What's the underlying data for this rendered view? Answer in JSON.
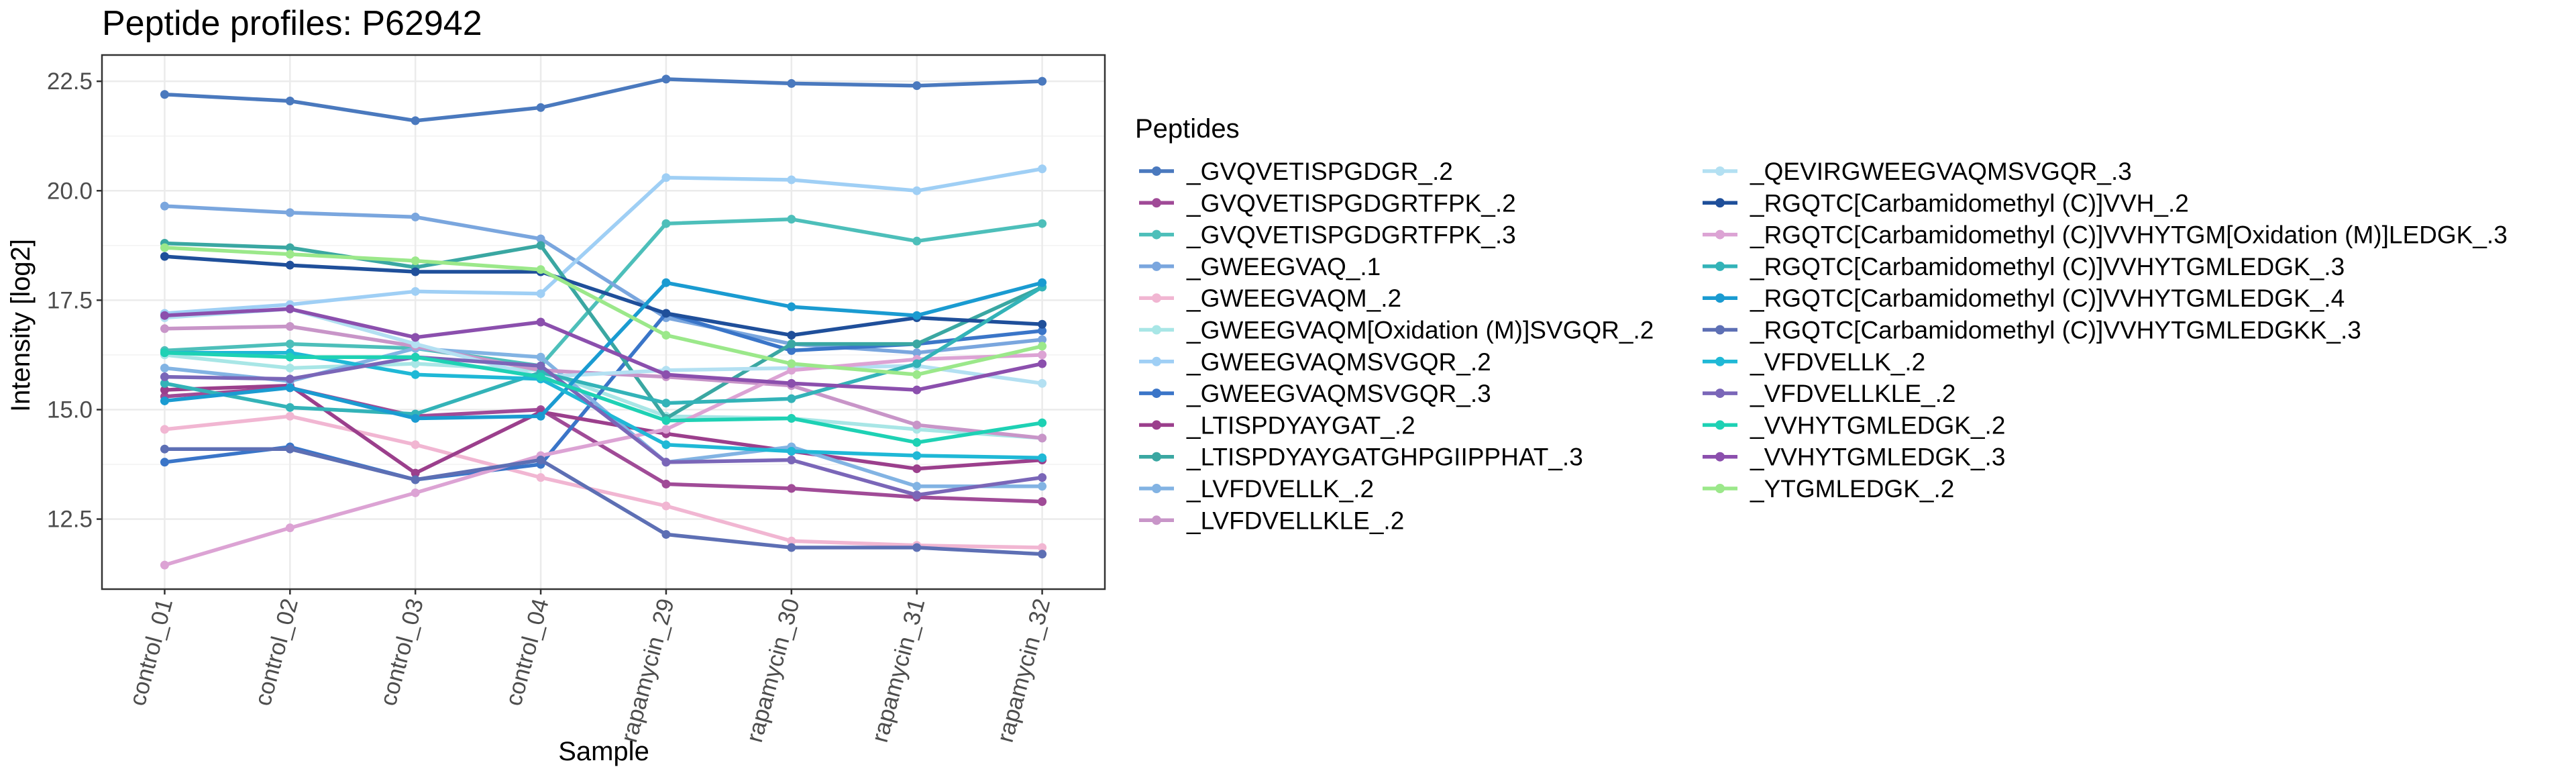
{
  "chart_data": {
    "type": "line",
    "title": "Peptide profiles: P62942",
    "xlabel": "Sample",
    "ylabel": "Intensity [log2]",
    "ylim": [
      10.9,
      23.1
    ],
    "y_ticks": [
      12.5,
      15.0,
      17.5,
      20.0,
      22.5
    ],
    "y_tick_labels": [
      "12.5",
      "15.0",
      "17.5",
      "20.0",
      "22.5"
    ],
    "grid": true,
    "legend_title": "Peptides",
    "legend_position": "right",
    "categories": [
      "control_01",
      "control_02",
      "control_03",
      "control_04",
      "rapamycin_29",
      "rapamycin_30",
      "rapamycin_31",
      "rapamycin_32"
    ],
    "series": [
      {
        "name": "_GVQVETISPGDGR_.2",
        "color": "#4a79be",
        "values": [
          22.2,
          22.05,
          21.6,
          21.9,
          22.55,
          22.45,
          22.4,
          22.5
        ]
      },
      {
        "name": "_GVQVETISPGDGRTFPK_.2",
        "color": "#a04b97",
        "values": [
          15.3,
          15.5,
          14.85,
          15.0,
          13.3,
          13.2,
          13.0,
          12.9
        ]
      },
      {
        "name": "_GVQVETISPGDGRTFPK_.3",
        "color": "#4dbfba",
        "values": [
          16.35,
          16.5,
          16.4,
          16.0,
          19.25,
          19.35,
          18.85,
          19.25
        ]
      },
      {
        "name": "_GWEEGVAQ_.1",
        "color": "#7aa6de",
        "values": [
          19.65,
          19.5,
          19.4,
          18.9,
          17.1,
          16.5,
          16.3,
          16.6
        ]
      },
      {
        "name": "_GWEEGVAQM_.2",
        "color": "#f1b6d2",
        "values": [
          14.55,
          14.85,
          14.2,
          13.45,
          12.8,
          12.0,
          11.9,
          11.85
        ]
      },
      {
        "name": "_GWEEGVAQM[Oxidation (M)]SVGQR_.2",
        "color": "#a8e6e6",
        "values": [
          16.25,
          15.95,
          16.05,
          15.9,
          14.85,
          14.8,
          14.55,
          14.35
        ]
      },
      {
        "name": "_GWEEGVAQMSVGQR_.2",
        "color": "#9fcff5",
        "values": [
          17.2,
          17.4,
          17.7,
          17.65,
          20.3,
          20.25,
          20.0,
          20.5
        ]
      },
      {
        "name": "_GWEEGVAQMSVGQR_.3",
        "color": "#3a75c8",
        "values": [
          13.8,
          14.15,
          13.4,
          13.75,
          17.2,
          16.35,
          16.5,
          16.8
        ]
      },
      {
        "name": "_LTISPDYAYGAT_.2",
        "color": "#9b3f8c",
        "values": [
          15.45,
          15.55,
          13.55,
          14.95,
          14.45,
          14.05,
          13.65,
          13.85
        ]
      },
      {
        "name": "_LTISPDYAYGATGHPGIIPPHAT_.3",
        "color": "#3aa7a2",
        "values": [
          18.8,
          18.7,
          18.25,
          18.75,
          14.8,
          16.5,
          16.5,
          17.8
        ]
      },
      {
        "name": "_LVFDVELLK_.2",
        "color": "#82b3e3",
        "values": [
          15.95,
          15.65,
          16.4,
          16.2,
          13.8,
          14.15,
          13.25,
          13.25
        ]
      },
      {
        "name": "_LVFDVELLKLE_.2",
        "color": "#c895c8",
        "values": [
          16.85,
          16.9,
          16.45,
          15.9,
          15.75,
          15.55,
          14.65,
          14.35
        ]
      },
      {
        "name": "_QEVIRGWEEGVAQMSVGQR_.3",
        "color": "#b3e0f2",
        "values": [
          17.1,
          17.3,
          16.5,
          15.75,
          15.9,
          15.95,
          16.0,
          15.6
        ]
      },
      {
        "name": "_RGQTC[Carbamidomethyl (C)]VVH_.2",
        "color": "#1f4f9a",
        "values": [
          18.5,
          18.3,
          18.15,
          18.15,
          17.2,
          16.7,
          17.1,
          16.95
        ]
      },
      {
        "name": "_RGQTC[Carbamidomethyl (C)]VVHYTGM[Oxidation (M)]LEDGK_.3",
        "color": "#dca3d4",
        "values": [
          11.45,
          12.3,
          13.1,
          13.95,
          14.55,
          15.9,
          16.15,
          16.25
        ]
      },
      {
        "name": "_RGQTC[Carbamidomethyl (C)]VVHYTGMLEDGK_.3",
        "color": "#33b3b8",
        "values": [
          15.6,
          15.05,
          14.9,
          15.85,
          15.15,
          15.25,
          16.05,
          17.8
        ]
      },
      {
        "name": "_RGQTC[Carbamidomethyl (C)]VVHYTGMLEDGK_.4",
        "color": "#1a9bd1",
        "values": [
          15.2,
          15.5,
          14.8,
          14.85,
          17.9,
          17.35,
          17.15,
          17.9
        ]
      },
      {
        "name": "_RGQTC[Carbamidomethyl (C)]VVHYTGMLEDGKK_.3",
        "color": "#5d6fb4",
        "values": [
          14.1,
          14.1,
          13.4,
          13.85,
          12.15,
          11.85,
          11.85,
          11.7
        ]
      },
      {
        "name": "_VFDVELLK_.2",
        "color": "#1fb8d6",
        "values": [
          16.3,
          16.3,
          15.8,
          15.7,
          14.2,
          14.05,
          13.95,
          13.9
        ]
      },
      {
        "name": "_VFDVELLKLE_.2",
        "color": "#7a66b8",
        "values": [
          15.75,
          15.7,
          16.2,
          16.0,
          13.8,
          13.85,
          13.05,
          13.45
        ]
      },
      {
        "name": "_VVHYTGMLEDGK_.2",
        "color": "#1ed1b4",
        "values": [
          16.3,
          16.2,
          16.2,
          15.75,
          14.75,
          14.8,
          14.25,
          14.7
        ]
      },
      {
        "name": "_VVHYTGMLEDGK_.3",
        "color": "#8b4fad",
        "values": [
          17.15,
          17.3,
          16.65,
          17.0,
          15.8,
          15.6,
          15.45,
          16.05
        ]
      },
      {
        "name": "_YTGMLEDGK_.2",
        "color": "#9be88a",
        "values": [
          18.7,
          18.55,
          18.4,
          18.2,
          16.7,
          16.05,
          15.8,
          16.45
        ]
      }
    ]
  }
}
